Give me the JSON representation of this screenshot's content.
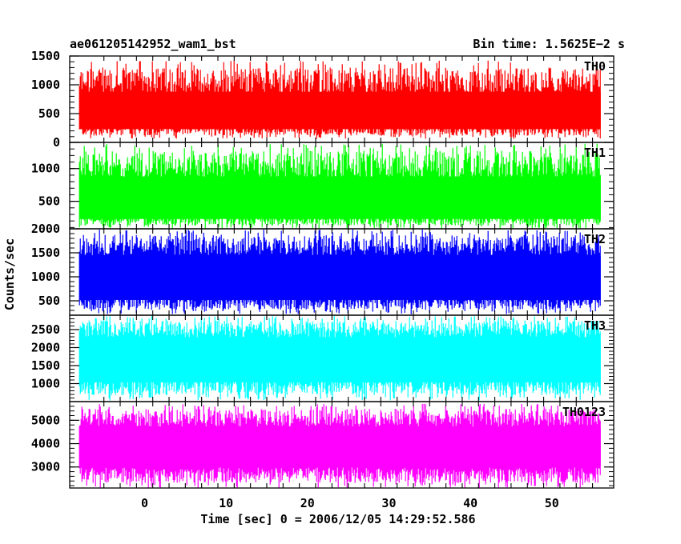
{
  "header": {
    "title": "ae061205142952_wam1_bst",
    "bin_time": "Bin time: 1.5625E−2 s"
  },
  "chart_data": {
    "type": "line",
    "xlabel": "Time [sec] 0 = 2006/12/05 14:29:52.586",
    "ylabel": "Counts/sec",
    "x_start": -8,
    "x_end": 56,
    "xlim": [
      -9.2,
      57.6
    ],
    "xticks": [
      0,
      10,
      20,
      30,
      40,
      50
    ],
    "panels": [
      {
        "name": "TH0",
        "color": "#ff0000",
        "ylim": [
          0,
          1500
        ],
        "yticks": [
          0,
          500,
          1000,
          1500
        ],
        "low": 60,
        "typ_low": 200,
        "typ_high": 1000,
        "high": 1420
      },
      {
        "name": "TH1",
        "color": "#00ff00",
        "ylim": [
          80,
          1400
        ],
        "yticks": [
          500,
          1000
        ],
        "low": 80,
        "typ_low": 200,
        "typ_high": 1000,
        "high": 1380
      },
      {
        "name": "TH2",
        "color": "#0000ff",
        "ylim": [
          200,
          2000
        ],
        "yticks": [
          500,
          1000,
          1500,
          2000
        ],
        "low": 220,
        "typ_low": 450,
        "typ_high": 1600,
        "high": 1990
      },
      {
        "name": "TH3",
        "color": "#00ffff",
        "ylim": [
          500,
          2900
        ],
        "yticks": [
          1000,
          1500,
          2000,
          2500
        ],
        "low": 530,
        "typ_low": 900,
        "typ_high": 2450,
        "high": 2880
      },
      {
        "name": "TH0123",
        "color": "#ff00ff",
        "ylim": [
          2100,
          5800
        ],
        "yticks": [
          3000,
          4000,
          5000
        ],
        "low": 2100,
        "typ_low": 2650,
        "typ_high": 5000,
        "high": 5700
      }
    ]
  }
}
